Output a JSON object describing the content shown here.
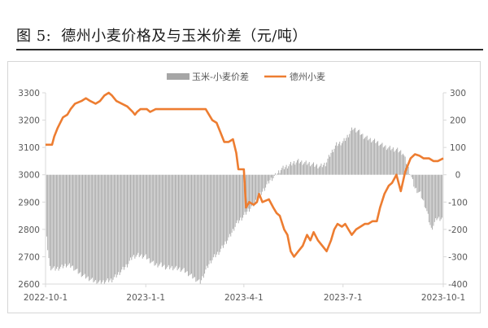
{
  "title": {
    "label": "图 5:",
    "text": "德州小麦价格及与玉米价差（元/吨）"
  },
  "colors": {
    "spread": "#a6a6a6",
    "price": "#ed7d31",
    "axis": "#d9d9d9",
    "text": "#595959"
  },
  "chart_data": {
    "type": "bar+line",
    "x_range": [
      "2022-10-01",
      "2023-10-01"
    ],
    "x_ticks": [
      "2022-10-1",
      "2023-1-1",
      "2023-4-1",
      "2023-7-1",
      "2023-10-1"
    ],
    "y_left": {
      "min": 2600,
      "max": 3300,
      "step": 100,
      "ticks": [
        "2600",
        "2700",
        "2800",
        "2900",
        "3000",
        "3100",
        "3200",
        "3300"
      ]
    },
    "y_right": {
      "min": -400,
      "max": 300,
      "step": 100,
      "ticks": [
        "-400",
        "-300",
        "-200",
        "-100",
        "0",
        "100",
        "200",
        "300"
      ]
    },
    "legend": {
      "position": "top",
      "items": [
        "玉米-小麦价差",
        "德州小麦"
      ]
    },
    "series": [
      {
        "name": "玉米-小麦价差",
        "kind": "bar",
        "axis": "right",
        "points": [
          [
            "2022-10-01",
            -200
          ],
          [
            "2022-10-05",
            -340
          ],
          [
            "2022-10-10",
            -345
          ],
          [
            "2022-10-15",
            -340
          ],
          [
            "2022-10-20",
            -330
          ],
          [
            "2022-10-25",
            -335
          ],
          [
            "2022-11-01",
            -360
          ],
          [
            "2022-11-05",
            -370
          ],
          [
            "2022-11-10",
            -380
          ],
          [
            "2022-11-15",
            -390
          ],
          [
            "2022-11-20",
            -395
          ],
          [
            "2022-11-25",
            -390
          ],
          [
            "2022-12-01",
            -385
          ],
          [
            "2022-12-05",
            -370
          ],
          [
            "2022-12-10",
            -350
          ],
          [
            "2022-12-15",
            -330
          ],
          [
            "2022-12-20",
            -300
          ],
          [
            "2022-12-25",
            -295
          ],
          [
            "2023-01-01",
            -300
          ],
          [
            "2023-01-05",
            -315
          ],
          [
            "2023-01-10",
            -330
          ],
          [
            "2023-01-15",
            -330
          ],
          [
            "2023-01-20",
            -340
          ],
          [
            "2023-01-25",
            -340
          ],
          [
            "2023-02-01",
            -345
          ],
          [
            "2023-02-05",
            -350
          ],
          [
            "2023-02-10",
            -365
          ],
          [
            "2023-02-15",
            -380
          ],
          [
            "2023-02-20",
            -395
          ],
          [
            "2023-02-25",
            -350
          ],
          [
            "2023-03-01",
            -320
          ],
          [
            "2023-03-05",
            -300
          ],
          [
            "2023-03-10",
            -280
          ],
          [
            "2023-03-15",
            -250
          ],
          [
            "2023-03-20",
            -220
          ],
          [
            "2023-03-25",
            -180
          ],
          [
            "2023-04-01",
            -150
          ],
          [
            "2023-04-05",
            -130
          ],
          [
            "2023-04-10",
            -110
          ],
          [
            "2023-04-15",
            -80
          ],
          [
            "2023-04-20",
            -50
          ],
          [
            "2023-04-25",
            -20
          ],
          [
            "2023-05-01",
            0
          ],
          [
            "2023-05-05",
            20
          ],
          [
            "2023-05-10",
            30
          ],
          [
            "2023-05-15",
            40
          ],
          [
            "2023-05-20",
            50
          ],
          [
            "2023-05-25",
            45
          ],
          [
            "2023-06-01",
            40
          ],
          [
            "2023-06-05",
            35
          ],
          [
            "2023-06-10",
            30
          ],
          [
            "2023-06-15",
            40
          ],
          [
            "2023-06-20",
            80
          ],
          [
            "2023-06-25",
            110
          ],
          [
            "2023-07-01",
            120
          ],
          [
            "2023-07-05",
            140
          ],
          [
            "2023-07-10",
            170
          ],
          [
            "2023-07-15",
            160
          ],
          [
            "2023-07-20",
            140
          ],
          [
            "2023-07-25",
            130
          ],
          [
            "2023-08-01",
            120
          ],
          [
            "2023-08-05",
            110
          ],
          [
            "2023-08-10",
            100
          ],
          [
            "2023-08-15",
            95
          ],
          [
            "2023-08-20",
            90
          ],
          [
            "2023-08-25",
            80
          ],
          [
            "2023-09-01",
            0
          ],
          [
            "2023-09-05",
            -50
          ],
          [
            "2023-09-10",
            -70
          ],
          [
            "2023-09-15",
            -120
          ],
          [
            "2023-09-20",
            -200
          ],
          [
            "2023-09-25",
            -160
          ],
          [
            "2023-10-01",
            -160
          ]
        ]
      },
      {
        "name": "德州小麦",
        "kind": "line",
        "axis": "left",
        "points": [
          [
            "2022-10-01",
            3110
          ],
          [
            "2022-10-07",
            3110
          ],
          [
            "2022-10-09",
            3140
          ],
          [
            "2022-10-12",
            3170
          ],
          [
            "2022-10-17",
            3210
          ],
          [
            "2022-10-21",
            3220
          ],
          [
            "2022-10-24",
            3240
          ],
          [
            "2022-10-28",
            3260
          ],
          [
            "2022-11-03",
            3270
          ],
          [
            "2022-11-07",
            3280
          ],
          [
            "2022-11-11",
            3270
          ],
          [
            "2022-11-16",
            3260
          ],
          [
            "2022-11-20",
            3270
          ],
          [
            "2022-11-24",
            3290
          ],
          [
            "2022-11-28",
            3300
          ],
          [
            "2022-12-01",
            3290
          ],
          [
            "2022-12-05",
            3270
          ],
          [
            "2022-12-10",
            3260
          ],
          [
            "2022-12-15",
            3250
          ],
          [
            "2022-12-20",
            3230
          ],
          [
            "2022-12-22",
            3220
          ],
          [
            "2022-12-24",
            3230
          ],
          [
            "2022-12-27",
            3240
          ],
          [
            "2023-01-02",
            3240
          ],
          [
            "2023-01-05",
            3230
          ],
          [
            "2023-01-10",
            3240
          ],
          [
            "2023-02-01",
            3240
          ],
          [
            "2023-02-10",
            3240
          ],
          [
            "2023-02-25",
            3240
          ],
          [
            "2023-02-28",
            3220
          ],
          [
            "2023-03-03",
            3200
          ],
          [
            "2023-03-07",
            3190
          ],
          [
            "2023-03-10",
            3160
          ],
          [
            "2023-03-14",
            3120
          ],
          [
            "2023-03-18",
            3120
          ],
          [
            "2023-03-22",
            3130
          ],
          [
            "2023-03-25",
            3080
          ],
          [
            "2023-03-27",
            3020
          ],
          [
            "2023-03-30",
            3020
          ],
          [
            "2023-04-01",
            3020
          ],
          [
            "2023-04-03",
            2880
          ],
          [
            "2023-04-06",
            2900
          ],
          [
            "2023-04-10",
            2890
          ],
          [
            "2023-04-13",
            2900
          ],
          [
            "2023-04-15",
            2930
          ],
          [
            "2023-04-18",
            2900
          ],
          [
            "2023-04-24",
            2910
          ],
          [
            "2023-04-28",
            2880
          ],
          [
            "2023-05-01",
            2860
          ],
          [
            "2023-05-04",
            2850
          ],
          [
            "2023-05-08",
            2800
          ],
          [
            "2023-05-11",
            2780
          ],
          [
            "2023-05-14",
            2720
          ],
          [
            "2023-05-17",
            2700
          ],
          [
            "2023-05-21",
            2720
          ],
          [
            "2023-05-25",
            2740
          ],
          [
            "2023-05-29",
            2780
          ],
          [
            "2023-06-01",
            2760
          ],
          [
            "2023-06-04",
            2790
          ],
          [
            "2023-06-08",
            2760
          ],
          [
            "2023-06-12",
            2740
          ],
          [
            "2023-06-16",
            2720
          ],
          [
            "2023-06-20",
            2760
          ],
          [
            "2023-06-23",
            2800
          ],
          [
            "2023-06-26",
            2820
          ],
          [
            "2023-06-30",
            2810
          ],
          [
            "2023-07-03",
            2820
          ],
          [
            "2023-07-06",
            2800
          ],
          [
            "2023-07-09",
            2780
          ],
          [
            "2023-07-13",
            2800
          ],
          [
            "2023-07-17",
            2810
          ],
          [
            "2023-07-21",
            2820
          ],
          [
            "2023-07-24",
            2820
          ],
          [
            "2023-07-28",
            2830
          ],
          [
            "2023-08-01",
            2830
          ],
          [
            "2023-08-04",
            2880
          ],
          [
            "2023-08-08",
            2930
          ],
          [
            "2023-08-12",
            2960
          ],
          [
            "2023-08-15",
            2970
          ],
          [
            "2023-08-19",
            3000
          ],
          [
            "2023-08-23",
            2940
          ],
          [
            "2023-08-27",
            3010
          ],
          [
            "2023-09-01",
            3060
          ],
          [
            "2023-09-05",
            3075
          ],
          [
            "2023-09-09",
            3070
          ],
          [
            "2023-09-13",
            3060
          ],
          [
            "2023-09-18",
            3060
          ],
          [
            "2023-09-22",
            3050
          ],
          [
            "2023-09-26",
            3050
          ],
          [
            "2023-10-01",
            3060
          ]
        ]
      }
    ]
  }
}
